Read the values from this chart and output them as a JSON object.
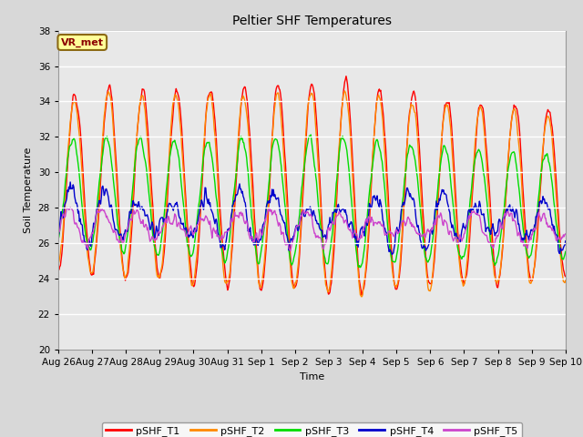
{
  "title": "Peltier SHF Temperatures",
  "xlabel": "Time",
  "ylabel": "Soil Temperature",
  "ylim": [
    20,
    38
  ],
  "yticks": [
    20,
    22,
    24,
    26,
    28,
    30,
    32,
    34,
    36,
    38
  ],
  "annotation_text": "VR_met",
  "annotation_bg": "#ffff99",
  "annotation_border": "#8B6914",
  "fig_bg": "#d8d8d8",
  "plot_bg": "#e8e8e8",
  "grid_color": "white",
  "colors": {
    "T1": "#ff0000",
    "T2": "#ff8800",
    "T3": "#00dd00",
    "T4": "#0000cc",
    "T5": "#cc44cc"
  },
  "legend_labels": [
    "pSHF_T1",
    "pSHF_T2",
    "pSHF_T3",
    "pSHF_T4",
    "pSHF_T5"
  ],
  "xtick_labels": [
    "Aug 26",
    "Aug 27",
    "Aug 28",
    "Aug 29",
    "Aug 30",
    "Aug 31",
    "Sep 1",
    "Sep 2",
    "Sep 3",
    "Sep 4",
    "Sep 5",
    "Sep 6",
    "Sep 7",
    "Sep 8",
    "Sep 9",
    "Sep 10"
  ],
  "n_days": 15,
  "points_per_day": 48
}
